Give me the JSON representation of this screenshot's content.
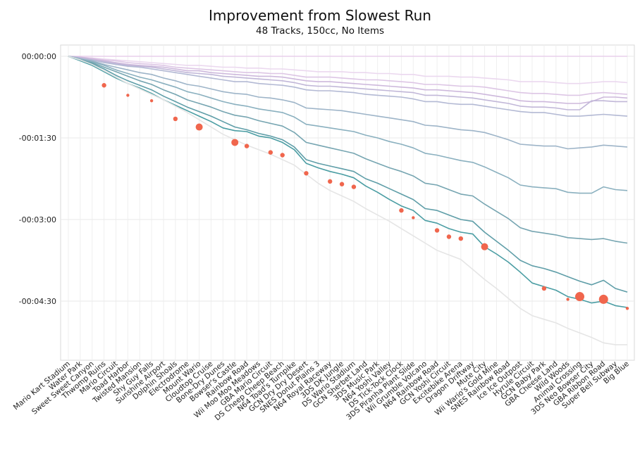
{
  "chart_data": {
    "type": "line",
    "title": "Improvement from Slowest Run",
    "subtitle": "48 Tracks, 150cc, No Items",
    "xlabel": "",
    "ylabel": "",
    "y_unit": "seconds relative to slowest run",
    "ylim": [
      -320,
      9
    ],
    "y_ticks": [
      0,
      -90,
      -180,
      -270
    ],
    "y_tick_labels": [
      "00:00:00",
      "-00:01:30",
      "-00:03:00",
      "-00:04:30"
    ],
    "grid": true,
    "categories": [
      "Mario Kart Stadium",
      "Water Park",
      "Sweet Sweet Canyon",
      "Thwomp Ruins",
      "Mario Circuit",
      "Toad Harbor",
      "Twisted Mansion",
      "Shy Guy Falls",
      "Sunshine Airport",
      "Dolphin Shoals",
      "Electrodrome",
      "Mount Wario",
      "Cloudtop Cruise",
      "Bone-Dry Dunes",
      "Bowser's Castle",
      "Rainbow Road",
      "Wii Moo Moo Meadows",
      "GBA Mario Circuit",
      "DS Cheep Cheep Beach",
      "N64 Toad's Turnpike",
      "GCN Dry Dry Desert",
      "SNES Donut Plains 3",
      "N64 Royal Raceway",
      "3DS DK Jungle",
      "DS Wario Stadium",
      "GCN Sherbet Land",
      "3DS Music Park",
      "N64 Yoshi Valley",
      "DS Tick-Tock Clock",
      "3DS Piranha Plant Slide",
      "Wii Grumble Volcano",
      "N64 Rainbow Road",
      "GCN Yoshi Circuit",
      "Excitebike Arena",
      "Dragon Driftway",
      "Mute City",
      "Wii Wario's Gold Mine",
      "SNES Rainbow Road",
      "Ice Ice Outpost",
      "Hyrule Circuit",
      "GCN Baby Park",
      "GBA Cheese Land",
      "Wild Woods",
      "Animal Crossing",
      "3DS Neo Bowser City",
      "GBA Ribbon Road",
      "Super Bell Subway",
      "Big Blue"
    ],
    "series": [
      {
        "color": "#e5e5e5",
        "values": [
          0,
          -4,
          -9,
          -16,
          -23,
          -30,
          -36,
          -42,
          -48,
          -55,
          -62,
          -70,
          -78,
          -86,
          -92,
          -98,
          -103,
          -108,
          -114,
          -120,
          -130,
          -140,
          -148,
          -154,
          -160,
          -168,
          -175,
          -182,
          -190,
          -198,
          -206,
          -214,
          -219,
          -224,
          -235,
          -246,
          -256,
          -267,
          -278,
          -286,
          -290,
          -294,
          -300,
          -305,
          -310,
          -316,
          -318,
          -318
        ]
      },
      {
        "color": "#4a9da3",
        "values": [
          0,
          -5,
          -10,
          -17,
          -24,
          -30,
          -35,
          -41,
          -48,
          -54,
          -60,
          -66,
          -72,
          -79,
          -82,
          -83,
          -88,
          -90,
          -95,
          -103,
          -118,
          -123,
          -127,
          -130,
          -134,
          -143,
          -150,
          -158,
          -165,
          -170,
          -181,
          -184,
          -190,
          -194,
          -196,
          -210,
          -218,
          -227,
          -238,
          -250,
          -254,
          -258,
          -265,
          -268,
          -272,
          -270,
          -275,
          -277
        ]
      },
      {
        "color": "#5f9ea8",
        "values": [
          0,
          -4,
          -8,
          -14,
          -21,
          -27,
          -32,
          -37,
          -44,
          -50,
          -56,
          -61,
          -66,
          -72,
          -78,
          -81,
          -85,
          -88,
          -92,
          -100,
          -114,
          -118,
          -121,
          -124,
          -127,
          -135,
          -140,
          -146,
          -152,
          -158,
          -168,
          -170,
          -175,
          -180,
          -182,
          -194,
          -204,
          -214,
          -225,
          -231,
          -234,
          -238,
          -243,
          -248,
          -252,
          -247,
          -256,
          -260
        ]
      },
      {
        "color": "#76a5b1",
        "values": [
          0,
          -4,
          -7,
          -12,
          -17,
          -22,
          -27,
          -31,
          -37,
          -42,
          -48,
          -52,
          -56,
          -61,
          -65,
          -67,
          -71,
          -74,
          -77,
          -84,
          -95,
          -98,
          -101,
          -104,
          -107,
          -113,
          -118,
          -123,
          -127,
          -132,
          -140,
          -142,
          -147,
          -152,
          -154,
          -163,
          -171,
          -179,
          -189,
          -193,
          -195,
          -197,
          -200,
          -201,
          -202,
          -201,
          -204,
          -206
        ]
      },
      {
        "color": "#8ab0bf",
        "values": [
          0,
          -3,
          -6,
          -10,
          -15,
          -19,
          -23,
          -26,
          -30,
          -34,
          -39,
          -42,
          -46,
          -50,
          -53,
          -55,
          -58,
          -60,
          -62,
          -67,
          -75,
          -77,
          -79,
          -81,
          -83,
          -87,
          -90,
          -94,
          -97,
          -101,
          -107,
          -109,
          -112,
          -115,
          -117,
          -122,
          -128,
          -134,
          -142,
          -144,
          -145,
          -146,
          -150,
          -151,
          -151,
          -144,
          -147,
          -148
        ]
      },
      {
        "color": "#9db4c8",
        "values": [
          0,
          -3,
          -5,
          -9,
          -12,
          -15,
          -18,
          -20,
          -24,
          -27,
          -31,
          -33,
          -36,
          -39,
          -41,
          -42,
          -45,
          -46,
          -48,
          -51,
          -57,
          -58,
          -59,
          -60,
          -62,
          -64,
          -66,
          -68,
          -70,
          -72,
          -76,
          -77,
          -79,
          -81,
          -82,
          -84,
          -88,
          -92,
          -97,
          -98,
          -99,
          -99,
          -102,
          -101,
          -100,
          -98,
          -99,
          -100
        ]
      },
      {
        "color": "#b3b9d4",
        "values": [
          0,
          -2,
          -4,
          -7,
          -9,
          -11,
          -12,
          -14,
          -16,
          -18,
          -20,
          -22,
          -24,
          -26,
          -28,
          -28,
          -30,
          -31,
          -32,
          -34,
          -37,
          -38,
          -38,
          -39,
          -40,
          -42,
          -43,
          -44,
          -45,
          -47,
          -50,
          -50,
          -52,
          -53,
          -53,
          -55,
          -57,
          -59,
          -61,
          -62,
          -62,
          -64,
          -66,
          -66,
          -65,
          -64,
          -65,
          -66
        ]
      },
      {
        "color": "#c1b7d8",
        "values": [
          0,
          -2,
          -4,
          -6,
          -8,
          -10,
          -11,
          -12,
          -14,
          -16,
          -18,
          -19,
          -20,
          -22,
          -23,
          -24,
          -25,
          -26,
          -27,
          -29,
          -32,
          -33,
          -33,
          -34,
          -35,
          -36,
          -37,
          -38,
          -39,
          -40,
          -43,
          -43,
          -44,
          -45,
          -46,
          -48,
          -50,
          -52,
          -55,
          -56,
          -56,
          -57,
          -59,
          -59,
          -49,
          -49,
          -50,
          -50
        ]
      },
      {
        "color": "#cdb8dc",
        "values": [
          0,
          -1,
          -3,
          -5,
          -7,
          -9,
          -10,
          -11,
          -12,
          -14,
          -16,
          -16,
          -18,
          -19,
          -20,
          -21,
          -22,
          -22,
          -23,
          -25,
          -27,
          -28,
          -28,
          -29,
          -30,
          -31,
          -32,
          -33,
          -34,
          -35,
          -37,
          -37,
          -38,
          -39,
          -40,
          -42,
          -44,
          -46,
          -49,
          -50,
          -50,
          -51,
          -52,
          -52,
          -50,
          -45,
          -45,
          -46
        ]
      },
      {
        "color": "#ddc6e5",
        "values": [
          0,
          -1,
          -2,
          -4,
          -5,
          -7,
          -8,
          -9,
          -10,
          -12,
          -13,
          -14,
          -15,
          -16,
          -17,
          -18,
          -18,
          -19,
          -19,
          -21,
          -23,
          -23,
          -23,
          -24,
          -25,
          -26,
          -26,
          -27,
          -28,
          -29,
          -31,
          -31,
          -32,
          -33,
          -33,
          -34,
          -36,
          -38,
          -40,
          -41,
          -41,
          -42,
          -43,
          -43,
          -41,
          -40,
          -41,
          -42
        ]
      },
      {
        "color": "#ebd8ef",
        "values": [
          0,
          -1,
          -2,
          -3,
          -4,
          -5,
          -6,
          -7,
          -8,
          -9,
          -10,
          -10,
          -11,
          -12,
          -12,
          -13,
          -13,
          -14,
          -14,
          -15,
          -16,
          -17,
          -17,
          -17,
          -18,
          -18,
          -19,
          -19,
          -20,
          -20,
          -22,
          -22,
          -22,
          -23,
          -23,
          -24,
          -25,
          -26,
          -28,
          -28,
          -28,
          -29,
          -30,
          -30,
          -29,
          -28,
          -28,
          -29
        ]
      },
      {
        "color": "#e8cfeb",
        "values": [
          0,
          0,
          0,
          0,
          0,
          0,
          0,
          0,
          0,
          0,
          0,
          0,
          0,
          0,
          0,
          0,
          0,
          0,
          0,
          0,
          0,
          0,
          0,
          0,
          0,
          0,
          0,
          0,
          0,
          0,
          0,
          0,
          0,
          0,
          0,
          0,
          0,
          0,
          0,
          0,
          0,
          0,
          0,
          0,
          0,
          0,
          0,
          0
        ]
      }
    ],
    "markers": {
      "color": "#f0664d",
      "points": [
        {
          "x": "Thwomp Ruins",
          "y": -32,
          "size": "medium"
        },
        {
          "x": "Toad Harbor",
          "y": -43,
          "size": "small"
        },
        {
          "x": "Shy Guy Falls",
          "y": -49,
          "size": "small"
        },
        {
          "x": "Dolphin Shoals",
          "y": -69,
          "size": "medium"
        },
        {
          "x": "Mount Wario",
          "y": -78,
          "size": "large"
        },
        {
          "x": "Bowser's Castle",
          "y": -95,
          "size": "large"
        },
        {
          "x": "Rainbow Road",
          "y": -99,
          "size": "medium"
        },
        {
          "x": "GBA Mario Circuit",
          "y": -106,
          "size": "medium"
        },
        {
          "x": "DS Cheep Cheep Beach",
          "y": -109,
          "size": "medium"
        },
        {
          "x": "GCN Dry Dry Desert",
          "y": -129,
          "size": "medium"
        },
        {
          "x": "N64 Royal Raceway",
          "y": -138,
          "size": "medium"
        },
        {
          "x": "3DS DK Jungle",
          "y": -141,
          "size": "medium"
        },
        {
          "x": "DS Wario Stadium",
          "y": -144,
          "size": "medium"
        },
        {
          "x": "DS Tick-Tock Clock",
          "y": -170,
          "size": "medium"
        },
        {
          "x": "3DS Piranha Plant Slide",
          "y": -178,
          "size": "small"
        },
        {
          "x": "N64 Rainbow Road",
          "y": -192,
          "size": "medium"
        },
        {
          "x": "GCN Yoshi Circuit",
          "y": -199,
          "size": "medium"
        },
        {
          "x": "Excitebike Arena",
          "y": -201,
          "size": "medium"
        },
        {
          "x": "Mute City",
          "y": -210,
          "size": "large"
        },
        {
          "x": "GCN Baby Park",
          "y": -256,
          "size": "medium"
        },
        {
          "x": "Wild Woods",
          "y": -268,
          "size": "small"
        },
        {
          "x": "Animal Crossing",
          "y": -265,
          "size": "xlarge"
        },
        {
          "x": "GBA Ribbon Road",
          "y": -268,
          "size": "xlarge"
        },
        {
          "x": "Big Blue",
          "y": -278,
          "size": "small"
        }
      ]
    }
  }
}
